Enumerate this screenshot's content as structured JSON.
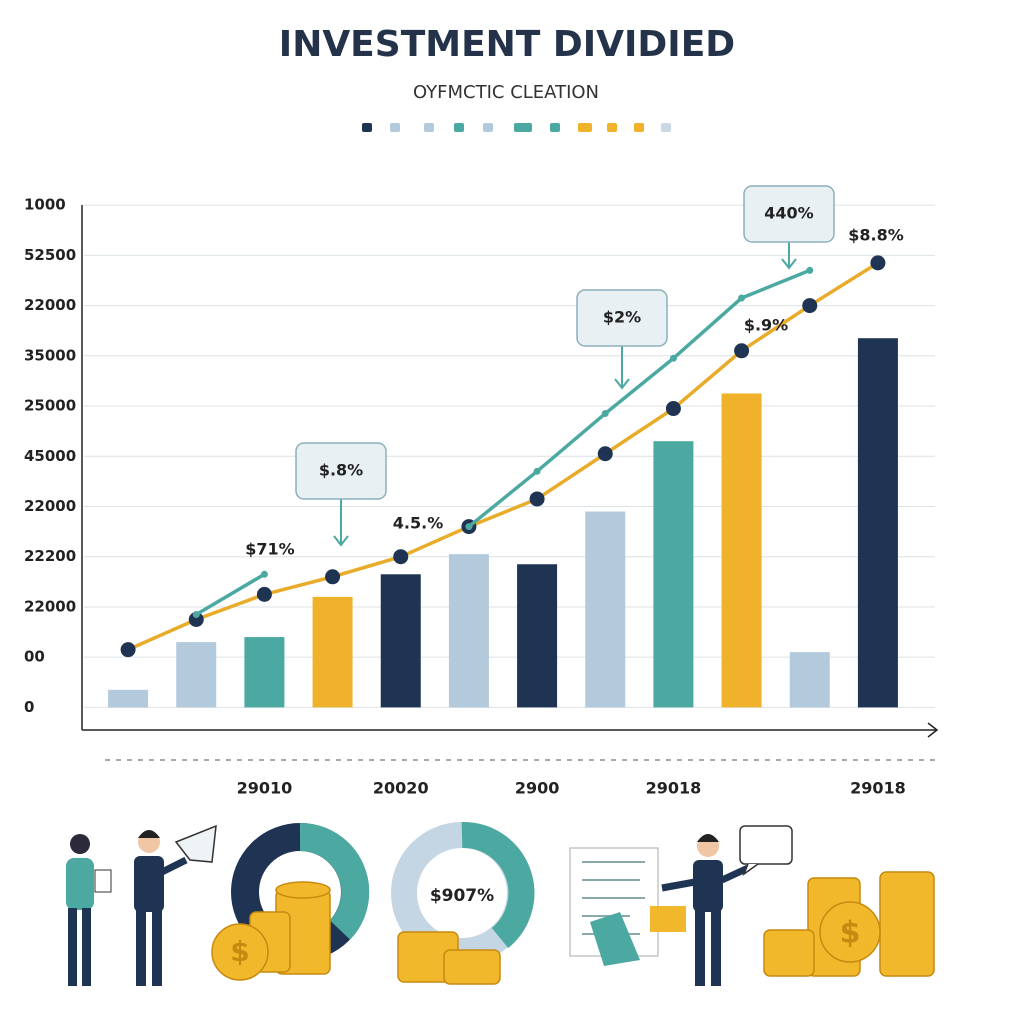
{
  "chart_data": {
    "type": "bar",
    "title": "INVESTMENT DIVIDIED",
    "subtitle": "OYFMCTIC CLEATION",
    "categories": [
      null,
      null,
      "29010",
      null,
      "20020",
      null,
      "2900",
      null,
      "29018",
      null,
      null,
      "29018"
    ],
    "values": [
      0.35,
      1.3,
      1.4,
      2.2,
      2.65,
      3.05,
      2.85,
      3.9,
      5.3,
      6.25,
      1.1,
      7.35
    ],
    "colors": [
      "#b3c9dc",
      "#b3c9dc",
      "#4ba9a1",
      "#f0b22a",
      "#1f3353",
      "#b3c9dc",
      "#1f3353",
      "#b3c9dc",
      "#4ba9a1",
      "#f0b22a",
      "#b3c9dc",
      "#1f3353"
    ],
    "lines": [
      {
        "color": "#e9ab2a",
        "values": [
          1.15,
          1.75,
          2.25,
          2.6,
          3.0,
          3.6,
          4.15,
          5.05,
          5.95,
          7.1,
          8.0,
          8.85
        ]
      },
      {
        "color": "#4ba9a1",
        "values": [
          null,
          1.85,
          2.65,
          null,
          null,
          3.6,
          4.7,
          5.85,
          6.95,
          8.15,
          8.7,
          null
        ]
      }
    ],
    "annotations": [
      "$.8%",
      "$2%",
      "440%",
      "$71%",
      "4.5.%",
      "$.9%",
      "$8.8%"
    ],
    "illustration_label": "$907%",
    "ylim": [
      -0.45,
      10.5
    ],
    "yticks": [
      0,
      {
        "value": 1,
        "label": "00"
      },
      {
        "value": 2,
        "label": "22000"
      },
      {
        "value": 3,
        "label": "22200"
      },
      {
        "value": 4,
        "label": "22000"
      },
      {
        "value": 5,
        "label": "45000"
      },
      {
        "value": 6,
        "label": "25000"
      },
      {
        "value": 7,
        "label": "35000"
      },
      {
        "value": 8,
        "label": "22000"
      },
      {
        "value": 9,
        "label": "52500"
      },
      {
        "value": 10,
        "label": "1000"
      }
    ],
    "grid": true
  }
}
